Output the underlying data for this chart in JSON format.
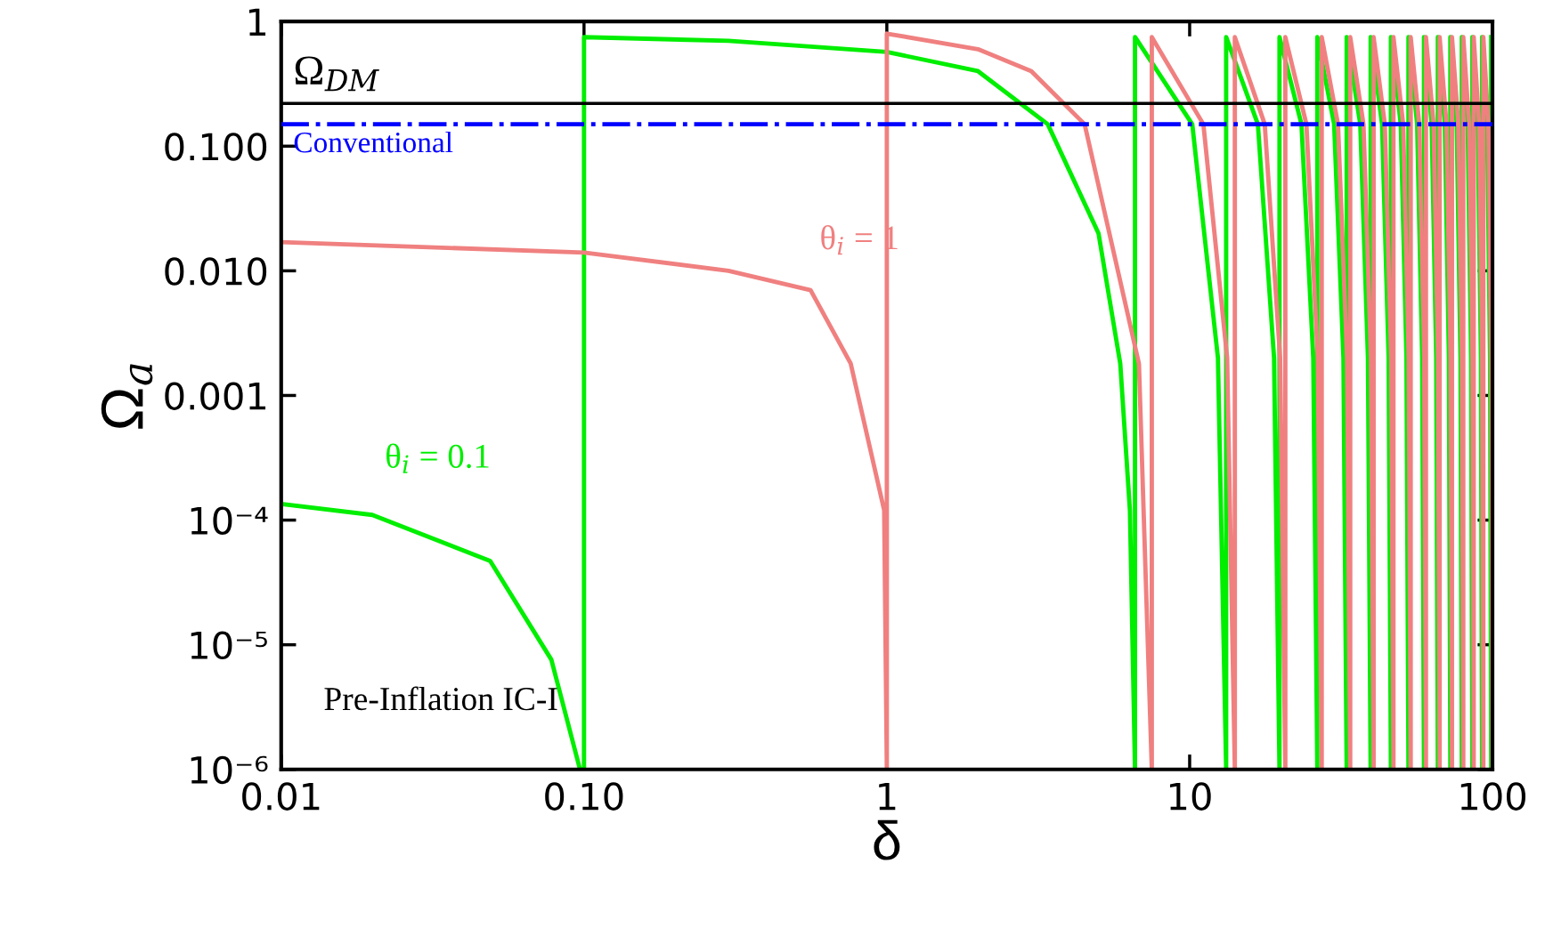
{
  "chart_data": {
    "type": "line",
    "xlabel": "δ",
    "ylabel": "Ω$_{a}$",
    "log": "xy",
    "grid": false,
    "legend": false,
    "marker": "none",
    "xlim": [
      0.01,
      100
    ],
    "xticks": [
      0.01,
      {
        "value": 0.1,
        "label": "0.10"
      },
      1,
      10,
      100
    ],
    "ylim": [
      1e-06,
      1
    ],
    "yticks": [
      {
        "value": 1e-06,
        "label": "10⁻⁶"
      },
      {
        "value": 1e-05,
        "label": "10⁻⁵"
      },
      {
        "value": 0.0001,
        "label": "10⁻⁴"
      },
      {
        "value": 0.001,
        "label": "0.001"
      },
      {
        "value": 0.01,
        "label": "0.010"
      },
      {
        "value": 0.1,
        "label": "0.100"
      },
      1
    ],
    "series": [
      {
        "name": "θ$_{i}$ = 0.1",
        "color": "#00ee00",
        "line_style": "solid",
        "x": [
          0.01,
          0.02,
          0.049,
          0.078,
          0.097,
          0.1,
          0.1,
          0.3,
          1,
          2,
          3.4,
          5,
          5.9,
          6.35,
          6.6,
          6.6,
          10.2,
          12.4,
          13.2,
          13.2,
          16.8,
          19,
          19.8,
          19.8,
          23.4,
          25.6,
          26.4,
          26.4,
          30,
          32.2,
          33,
          33,
          36.6,
          38.8,
          39.6,
          39.6,
          43.2,
          45.4,
          46.2,
          46.2,
          49.8,
          52,
          52.8,
          52.8,
          56.4,
          58.6,
          59.4,
          59.4,
          63,
          65.2,
          66,
          66,
          69.6,
          71.8,
          72.6,
          72.6,
          76.2,
          78.4,
          79.2,
          79.2,
          82.8,
          85,
          85.8,
          85.8,
          89.4,
          91.6,
          92.4,
          92.4,
          96,
          98.2,
          99,
          99
        ],
        "values": [
          0.000135,
          0.00011,
          4.7e-05,
          7.6e-06,
          1e-06,
          1e-06,
          0.75,
          0.7,
          0.57,
          0.4,
          0.15,
          0.02,
          0.0018,
          0.00012,
          1e-06,
          0.75,
          0.15,
          0.002,
          1e-06,
          0.75,
          0.15,
          0.002,
          1e-06,
          0.75,
          0.15,
          0.002,
          1e-06,
          0.75,
          0.15,
          0.002,
          1e-06,
          0.75,
          0.15,
          0.002,
          1e-06,
          0.75,
          0.15,
          0.002,
          1e-06,
          0.75,
          0.15,
          0.002,
          1e-06,
          0.75,
          0.15,
          0.002,
          1e-06,
          0.75,
          0.15,
          0.002,
          1e-06,
          0.75,
          0.15,
          0.002,
          1e-06,
          0.75,
          0.15,
          0.002,
          1e-06,
          0.75,
          0.15,
          0.002,
          1e-06,
          0.75,
          0.15,
          0.002,
          1e-06,
          0.75,
          0.15,
          0.002,
          1e-06,
          0.75
        ]
      },
      {
        "name": "θ$_{i}$ = 1",
        "color": "#f08080",
        "line_style": "solid",
        "x": [
          0.01,
          0.1,
          0.3,
          0.56,
          0.76,
          0.98,
          1,
          1,
          2,
          3,
          4.5,
          6.8,
          7.5,
          7.5,
          11.1,
          13.3,
          14.1,
          14.1,
          17.7,
          19.9,
          20.7,
          20.7,
          24.3,
          26.5,
          27.3,
          27.3,
          30.9,
          33.1,
          33.9,
          33.9,
          37.5,
          39.7,
          40.5,
          40.5,
          44.1,
          46.3,
          47.1,
          47.1,
          50.7,
          52.9,
          53.7,
          53.7,
          57.3,
          59.5,
          60.3,
          60.3,
          63.9,
          66.1,
          66.9,
          66.9,
          70.5,
          72.7,
          73.5,
          73.5,
          77.1,
          79.3,
          80.1,
          80.1,
          83.7,
          85.9,
          86.7,
          86.7,
          90.3,
          92.5,
          93.3,
          93.3,
          96.9,
          99.1,
          99.9
        ],
        "values": [
          0.017,
          0.014,
          0.01,
          0.007,
          0.0018,
          0.00012,
          1e-06,
          0.8,
          0.6,
          0.4,
          0.15,
          0.0018,
          1e-06,
          0.75,
          0.15,
          0.002,
          1e-06,
          0.75,
          0.15,
          0.002,
          1e-06,
          0.75,
          0.15,
          0.002,
          1e-06,
          0.75,
          0.15,
          0.002,
          1e-06,
          0.75,
          0.15,
          0.002,
          1e-06,
          0.75,
          0.15,
          0.002,
          1e-06,
          0.75,
          0.15,
          0.002,
          1e-06,
          0.75,
          0.15,
          0.002,
          1e-06,
          0.75,
          0.15,
          0.002,
          1e-06,
          0.75,
          0.15,
          0.002,
          1e-06,
          0.75,
          0.15,
          0.002,
          1e-06,
          0.75,
          0.15,
          0.002,
          1e-06,
          0.75,
          0.15,
          0.002,
          1e-06,
          0.75,
          0.15,
          0.002,
          1e-06
        ]
      }
    ],
    "ref_lines": [
      {
        "axis": "y",
        "value": 0.22,
        "label": "Ω$_{DM}$",
        "color": "#000000",
        "line_style": "solid"
      },
      {
        "axis": "y",
        "value": 0.15,
        "label": "Conventional",
        "color": "#0000ff",
        "line_style": "dashdot"
      }
    ],
    "annotations": [
      "Pre-Inflation IC-I"
    ]
  }
}
